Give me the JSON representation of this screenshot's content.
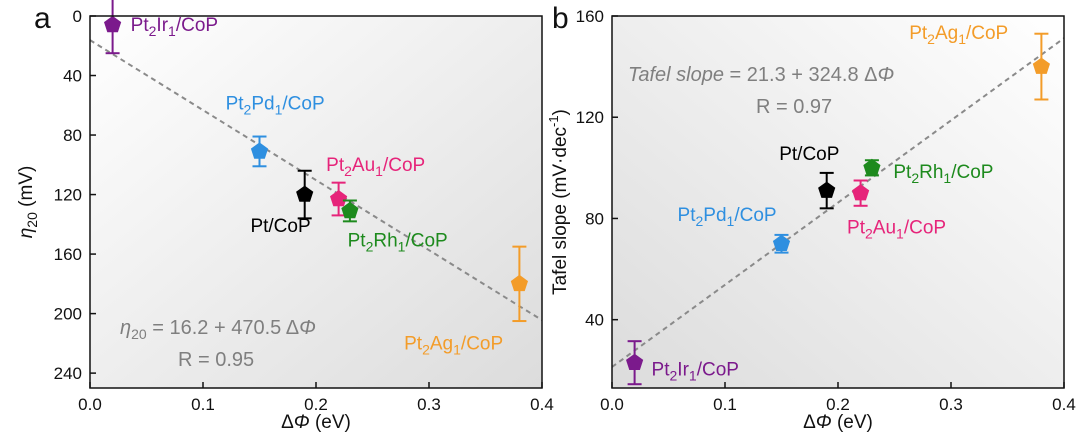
{
  "chart_data": [
    {
      "panel": "a",
      "type": "scatter",
      "x_axis": {
        "label_pre": "Δ",
        "label_sym": "Φ",
        "label_post": " (eV)",
        "range": [
          0.0,
          0.4
        ],
        "ticks": [
          "0.0",
          "0.1",
          "0.2",
          "0.3",
          "0.4"
        ]
      },
      "y_axis": {
        "label_sym": "η",
        "label_sub": "20",
        "label_post": " (mV)",
        "range": [
          0,
          250
        ],
        "inverted": true,
        "ticks": [
          "0",
          "40",
          "80",
          "120",
          "160",
          "200",
          "240"
        ]
      },
      "points": [
        {
          "name": "Pt2Ir1/CoP",
          "lbl": [
            "Pt",
            "2",
            "Ir",
            "1",
            "/CoP"
          ],
          "x": 0.02,
          "y": 6,
          "err": 19,
          "color": "#7b1a8c",
          "lx": 0.036,
          "ly": 10
        },
        {
          "name": "Pt2Pd1/CoP",
          "lbl": [
            "Pt",
            "2",
            "Pd",
            "1",
            "/CoP"
          ],
          "x": 0.15,
          "y": 91,
          "err": 10,
          "color": "#2e8fe0",
          "lx": 0.12,
          "ly": 63
        },
        {
          "name": "Pt/CoP",
          "lbl": [
            "Pt/CoP",
            "",
            "",
            "",
            ""
          ],
          "x": 0.19,
          "y": 120,
          "err": 16,
          "color": "#000000",
          "lx": 0.142,
          "ly": 145
        },
        {
          "name": "Pt2Au1/CoP",
          "lbl": [
            "Pt",
            "2",
            "Au",
            "1",
            "/CoP"
          ],
          "x": 0.22,
          "y": 123,
          "err": 11,
          "color": "#e6247a",
          "lx": 0.209,
          "ly": 104
        },
        {
          "name": "Pt2Rh1/CoP",
          "lbl": [
            "Pt",
            "2",
            "Rh",
            "1",
            "/CoP"
          ],
          "x": 0.23,
          "y": 131,
          "err": 7,
          "color": "#1d8a1d",
          "lx": 0.228,
          "ly": 155
        },
        {
          "name": "Pt2Ag1/CoP",
          "lbl": [
            "Pt",
            "2",
            "Ag",
            "1",
            "/CoP"
          ],
          "x": 0.38,
          "y": 180,
          "err": 25,
          "color": "#f39c29",
          "lx": 0.278,
          "ly": 224
        }
      ],
      "fit": {
        "intercept": 16.2,
        "slope": 470.5
      },
      "equation": {
        "lhs_sym": "η",
        "lhs_sub": "20",
        "rhs": " = 16.2 + 470.5 Δ",
        "rhs_sym": "Φ",
        "r": "R = 0.95"
      }
    },
    {
      "panel": "b",
      "type": "scatter",
      "x_axis": {
        "label_pre": "Δ",
        "label_sym": "Φ",
        "label_post": " (eV)",
        "range": [
          0.0,
          0.4
        ],
        "ticks": [
          "0.0",
          "0.1",
          "0.2",
          "0.3",
          "0.4"
        ]
      },
      "y_axis": {
        "label_main": "Tafel slope (mV·dec",
        "label_sup": "-1",
        "label_post": ")",
        "range": [
          13,
          160
        ],
        "inverted": false,
        "ticks": [
          "40",
          "80",
          "120",
          "160"
        ]
      },
      "points": [
        {
          "name": "Pt2Ir1/CoP",
          "lbl": [
            "Pt",
            "2",
            "Ir",
            "1",
            "/CoP"
          ],
          "x": 0.02,
          "y": 23,
          "err": 8.5,
          "color": "#7b1a8c",
          "lx": 0.035,
          "ly": 18
        },
        {
          "name": "Pt2Pd1/CoP",
          "lbl": [
            "Pt",
            "2",
            "Pd",
            "1",
            "/CoP"
          ],
          "x": 0.15,
          "y": 70,
          "err": 3.5,
          "color": "#2e8fe0",
          "lx": 0.058,
          "ly": 79
        },
        {
          "name": "Pt/CoP",
          "lbl": [
            "Pt/CoP",
            "",
            "",
            "",
            ""
          ],
          "x": 0.19,
          "y": 91,
          "err": 7,
          "color": "#000000",
          "lx": 0.148,
          "ly": 103
        },
        {
          "name": "Pt2Au1/CoP",
          "lbl": [
            "Pt",
            "2",
            "Au",
            "1",
            "/CoP"
          ],
          "x": 0.22,
          "y": 90,
          "err": 5,
          "color": "#e6247a",
          "lx": 0.208,
          "ly": 74
        },
        {
          "name": "Pt2Rh1/CoP",
          "lbl": [
            "Pt",
            "2",
            "Rh",
            "1",
            "/CoP"
          ],
          "x": 0.23,
          "y": 100,
          "err": 3,
          "color": "#1d8a1d",
          "lx": 0.249,
          "ly": 96
        },
        {
          "name": "Pt2Ag1/CoP",
          "lbl": [
            "Pt",
            "2",
            "Ag",
            "1",
            "/CoP"
          ],
          "x": 0.38,
          "y": 140,
          "err": 13,
          "color": "#f39c29",
          "lx": 0.263,
          "ly": 151
        }
      ],
      "fit": {
        "intercept": 21.3,
        "slope": 324.8
      },
      "equation": {
        "lhs_it": "Tafel slope",
        "rhs": " = 21.3 + 324.8 Δ",
        "rhs_sym": "Φ",
        "r": "R = 0.97"
      }
    }
  ]
}
